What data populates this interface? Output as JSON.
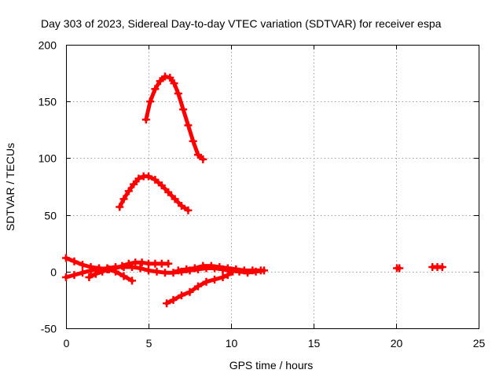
{
  "chart_data": {
    "type": "scatter",
    "title": "Day 303 of 2023, Sidereal Day-to-day VTEC variation (SDTVAR) for receiver espa",
    "xlabel": "GPS time / hours",
    "ylabel": "SDTVAR / TECUs",
    "xlim": [
      0,
      25
    ],
    "ylim": [
      -50,
      200
    ],
    "xticks": [
      0,
      5,
      10,
      15,
      20,
      25
    ],
    "yticks": [
      -50,
      0,
      50,
      100,
      150,
      200
    ],
    "xtick_labels": [
      "0",
      "5",
      "10",
      "15",
      "20",
      "25"
    ],
    "ytick_labels": [
      "-50",
      "0",
      "50",
      "100",
      "150",
      "200"
    ],
    "grid": true,
    "marker_color": "#ff0000",
    "series": [
      {
        "name": "arc-high",
        "x": [
          4.85,
          5.1,
          5.4,
          5.7,
          6.0,
          6.3,
          6.55,
          6.8,
          7.1,
          7.4,
          7.7,
          8.0,
          8.3
        ],
        "y": [
          134,
          150,
          161,
          168,
          172,
          171,
          166,
          157,
          143,
          129,
          115,
          103,
          99
        ]
      },
      {
        "name": "arc-mid",
        "x": [
          3.25,
          3.5,
          3.8,
          4.1,
          4.4,
          4.7,
          5.0,
          5.4,
          5.8,
          6.2,
          6.6,
          7.0,
          7.4
        ],
        "y": [
          57,
          64,
          71,
          77,
          82,
          84,
          84,
          81,
          76,
          70,
          64,
          58,
          54
        ]
      },
      {
        "name": "arc-low-1",
        "x": [
          0.0,
          0.5,
          1.0,
          1.5,
          2.0,
          2.5,
          3.0,
          3.5,
          4.0
        ],
        "y": [
          12,
          9,
          6,
          4,
          3,
          2,
          0,
          -4,
          -8
        ]
      },
      {
        "name": "arc-low-2",
        "x": [
          0.0,
          0.5,
          1.0,
          1.5,
          2.0,
          2.5,
          3.0,
          3.5,
          4.0,
          4.5,
          5.0,
          5.5,
          6.0,
          6.5,
          7.0,
          7.5,
          8.0,
          8.5,
          9.0,
          9.5,
          10.0
        ],
        "y": [
          -5,
          -3,
          -1,
          1,
          2,
          3,
          4,
          4,
          4,
          3,
          1,
          0,
          -1,
          -1,
          0,
          1,
          2,
          3,
          3,
          2,
          1
        ]
      },
      {
        "name": "arc-low-3",
        "x": [
          1.4,
          1.8,
          2.2,
          2.6,
          3.0,
          3.4,
          3.8,
          4.2,
          4.6,
          5.0,
          5.4,
          5.8,
          6.2
        ],
        "y": [
          -5,
          -2,
          0,
          2,
          3,
          5,
          7,
          8,
          8,
          7,
          7,
          7,
          7
        ]
      },
      {
        "name": "arc-low-4",
        "x": [
          6.1,
          6.5,
          7.0,
          7.5,
          8.0,
          8.5,
          9.0,
          9.5,
          9.8,
          10.1
        ],
        "y": [
          -28,
          -25,
          -21,
          -18,
          -13,
          -9,
          -7,
          -5,
          -3,
          0
        ]
      },
      {
        "name": "arc-low-5",
        "x": [
          6.8,
          7.3,
          7.8,
          8.3,
          8.8,
          9.3,
          9.8,
          10.3,
          10.8,
          11.3,
          11.8
        ],
        "y": [
          1,
          2,
          3,
          5,
          5,
          4,
          3,
          2,
          1,
          1,
          1
        ]
      },
      {
        "name": "arc-low-6",
        "x": [
          9.5,
          10.0,
          10.5,
          11.0,
          11.5,
          12.0
        ],
        "y": [
          2,
          1,
          0,
          -1,
          0,
          1
        ]
      },
      {
        "name": "arc-short-a",
        "x": [
          20.05,
          20.2
        ],
        "y": [
          3,
          3
        ]
      },
      {
        "name": "arc-short-b",
        "x": [
          22.2,
          22.5,
          22.8
        ],
        "y": [
          4,
          4,
          4
        ]
      }
    ]
  }
}
